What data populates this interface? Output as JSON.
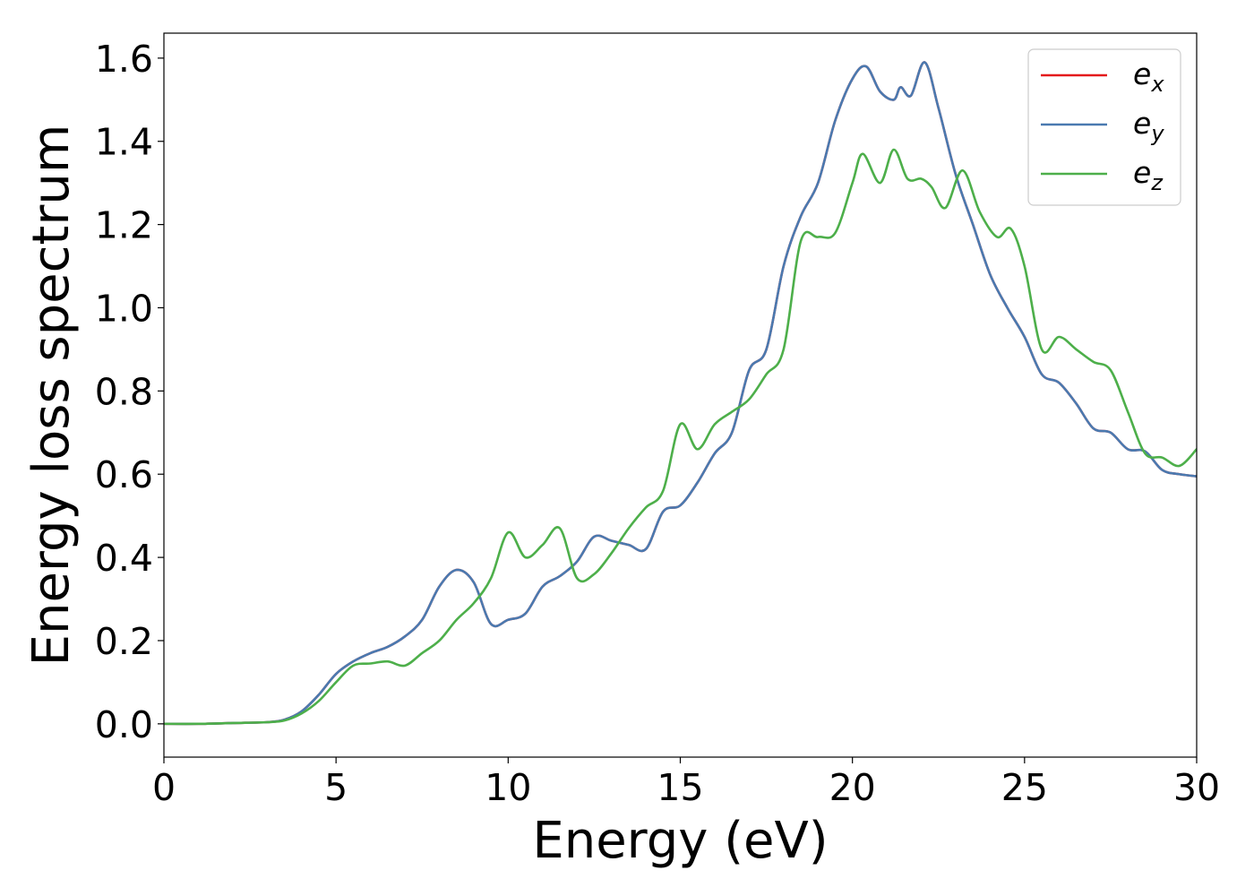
{
  "chart_data": {
    "type": "line",
    "xlabel": "Energy (eV)",
    "ylabel": "Energy loss spectrum",
    "xlim": [
      0,
      30
    ],
    "ylim": [
      -0.08,
      1.66
    ],
    "xticks": [
      0,
      5,
      10,
      15,
      20,
      25,
      30
    ],
    "yticks": [
      0.0,
      0.2,
      0.4,
      0.6,
      0.8,
      1.0,
      1.2,
      1.4,
      1.6
    ],
    "xtick_labels": [
      "0",
      "5",
      "10",
      "15",
      "20",
      "25",
      "30"
    ],
    "ytick_labels": [
      "0.0",
      "0.2",
      "0.4",
      "0.6",
      "0.8",
      "1.0",
      "1.2",
      "1.4",
      "1.6"
    ],
    "grid": false,
    "legend_position": "top-right",
    "series": [
      {
        "name": "e_x",
        "label_base": "e",
        "label_sub": "x",
        "color": "#e41a1c",
        "x": [
          0,
          1,
          2,
          3,
          3.5,
          4,
          4.5,
          5,
          5.5,
          6,
          6.5,
          7,
          7.5,
          8,
          8.5,
          9,
          9.5,
          10,
          10.5,
          11,
          11.5,
          12,
          12.5,
          13,
          13.5,
          14,
          14.5,
          15,
          15.5,
          16,
          16.5,
          17,
          17.5,
          18,
          18.5,
          19,
          19.5,
          20,
          20.4,
          20.8,
          21.2,
          21.4,
          21.7,
          22.1,
          22.5,
          23,
          23.5,
          24,
          24.5,
          25,
          25.5,
          26,
          26.5,
          27,
          27.5,
          28,
          28.5,
          29,
          29.5,
          30
        ],
        "y": [
          0,
          0,
          0.002,
          0.004,
          0.01,
          0.03,
          0.07,
          0.12,
          0.15,
          0.17,
          0.185,
          0.21,
          0.25,
          0.33,
          0.37,
          0.34,
          0.24,
          0.25,
          0.265,
          0.33,
          0.355,
          0.39,
          0.45,
          0.44,
          0.43,
          0.42,
          0.51,
          0.525,
          0.58,
          0.65,
          0.7,
          0.85,
          0.9,
          1.1,
          1.22,
          1.3,
          1.45,
          1.55,
          1.58,
          1.52,
          1.5,
          1.53,
          1.51,
          1.59,
          1.48,
          1.32,
          1.2,
          1.08,
          1.0,
          0.93,
          0.84,
          0.82,
          0.77,
          0.71,
          0.7,
          0.66,
          0.655,
          0.61,
          0.6,
          0.595
        ]
      },
      {
        "name": "e_y",
        "label_base": "e",
        "label_sub": "y",
        "color": "#4a7ab0",
        "x": [
          0,
          1,
          2,
          3,
          3.5,
          4,
          4.5,
          5,
          5.5,
          6,
          6.5,
          7,
          7.5,
          8,
          8.5,
          9,
          9.5,
          10,
          10.5,
          11,
          11.5,
          12,
          12.5,
          13,
          13.5,
          14,
          14.5,
          15,
          15.5,
          16,
          16.5,
          17,
          17.5,
          18,
          18.5,
          19,
          19.5,
          20,
          20.4,
          20.8,
          21.2,
          21.4,
          21.7,
          22.1,
          22.5,
          23,
          23.5,
          24,
          24.5,
          25,
          25.5,
          26,
          26.5,
          27,
          27.5,
          28,
          28.5,
          29,
          29.5,
          30
        ],
        "y": [
          0,
          0,
          0.002,
          0.004,
          0.01,
          0.03,
          0.07,
          0.12,
          0.15,
          0.17,
          0.185,
          0.21,
          0.25,
          0.33,
          0.37,
          0.34,
          0.24,
          0.25,
          0.265,
          0.33,
          0.355,
          0.39,
          0.45,
          0.44,
          0.43,
          0.42,
          0.51,
          0.525,
          0.58,
          0.65,
          0.7,
          0.85,
          0.9,
          1.1,
          1.22,
          1.3,
          1.45,
          1.55,
          1.58,
          1.52,
          1.5,
          1.53,
          1.51,
          1.59,
          1.48,
          1.32,
          1.2,
          1.08,
          1.0,
          0.93,
          0.84,
          0.82,
          0.77,
          0.71,
          0.7,
          0.66,
          0.655,
          0.61,
          0.6,
          0.595
        ]
      },
      {
        "name": "e_z",
        "label_base": "e",
        "label_sub": "z",
        "color": "#4daf4a",
        "x": [
          0,
          1,
          2,
          3,
          3.5,
          4,
          4.5,
          5,
          5.5,
          6,
          6.5,
          7,
          7.5,
          8,
          8.5,
          9,
          9.5,
          10,
          10.5,
          11,
          11.5,
          12,
          12.5,
          13,
          13.5,
          14,
          14.5,
          15,
          15.5,
          16,
          16.5,
          17,
          17.5,
          18,
          18.5,
          19,
          19.5,
          20,
          20.3,
          20.8,
          21.2,
          21.6,
          22,
          22.3,
          22.7,
          23.2,
          23.7,
          24.2,
          24.6,
          25,
          25.5,
          26,
          26.5,
          27,
          27.5,
          28,
          28.5,
          29,
          29.5,
          30
        ],
        "y": [
          0,
          0,
          0.002,
          0.004,
          0.008,
          0.025,
          0.055,
          0.1,
          0.14,
          0.145,
          0.15,
          0.14,
          0.17,
          0.2,
          0.25,
          0.29,
          0.35,
          0.46,
          0.4,
          0.43,
          0.47,
          0.35,
          0.36,
          0.41,
          0.47,
          0.52,
          0.56,
          0.72,
          0.66,
          0.72,
          0.75,
          0.78,
          0.84,
          0.9,
          1.16,
          1.17,
          1.18,
          1.3,
          1.37,
          1.3,
          1.38,
          1.31,
          1.31,
          1.29,
          1.24,
          1.33,
          1.23,
          1.17,
          1.19,
          1.1,
          0.9,
          0.93,
          0.9,
          0.87,
          0.85,
          0.75,
          0.65,
          0.64,
          0.62,
          0.66
        ]
      }
    ]
  }
}
